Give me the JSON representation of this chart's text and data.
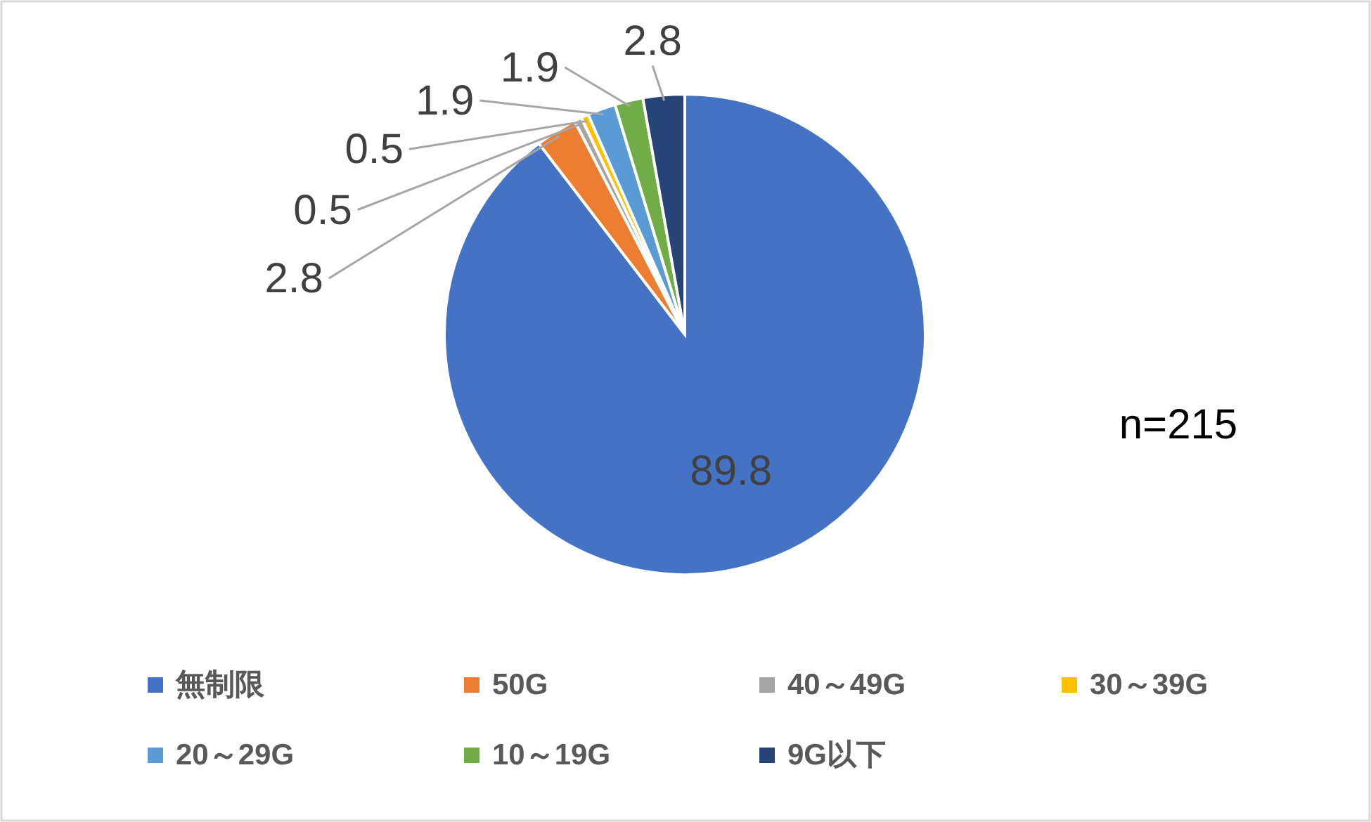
{
  "chart_data": {
    "type": "pie",
    "categories": [
      "無制限",
      "50G",
      "40～49G",
      "30～39G",
      "20～29G",
      "10～19G",
      "9G以下"
    ],
    "values": [
      89.8,
      2.8,
      0.5,
      0.5,
      1.9,
      1.9,
      2.8
    ],
    "colors": [
      "#4472c4",
      "#ed7d31",
      "#a5a5a5",
      "#ffc000",
      "#5b9bd5",
      "#70ad47",
      "#264478"
    ],
    "data_labels": true,
    "legend": "bottom",
    "annotations": [
      "n=215"
    ]
  }
}
